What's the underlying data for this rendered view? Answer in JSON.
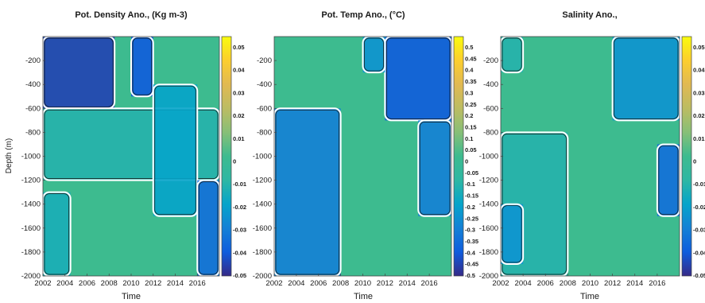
{
  "chart_data": [
    {
      "type": "heatmap",
      "title": "Pot. Density Ano., (Kg m-3)",
      "xlabel": "Time",
      "ylabel": "Depth (m)",
      "x_ticks": [
        "2002",
        "2004",
        "2006",
        "2008",
        "2010",
        "2012",
        "2014",
        "2016"
      ],
      "y_ticks": [
        "-200",
        "-400",
        "-600",
        "-800",
        "-1000",
        "-1200",
        "-1400",
        "-1600",
        "-1800",
        "-2000"
      ],
      "xlim": [
        2002,
        2018
      ],
      "ylim": [
        -2000,
        0
      ],
      "colorbar_ticks": [
        "0.05",
        "0.04",
        "0.03",
        "0.02",
        "0.01",
        "0",
        "-0.01",
        "-0.02",
        "-0.03",
        "-0.04",
        "-0.05"
      ],
      "clim": [
        -0.05,
        0.05
      ],
      "colormap": "parula",
      "background_value": 0,
      "anomaly_regions": [
        {
          "x0": 2002,
          "x1": 2008.5,
          "d0": 0,
          "d1": -600,
          "value": -0.045
        },
        {
          "x0": 2002,
          "x1": 2018,
          "d0": -600,
          "d1": -1200,
          "value": -0.012
        },
        {
          "x0": 2002,
          "x1": 2004.5,
          "d0": -1300,
          "d1": -2000,
          "value": -0.015
        },
        {
          "x0": 2010,
          "x1": 2012,
          "d0": 0,
          "d1": -500,
          "value": -0.04
        },
        {
          "x0": 2012,
          "x1": 2016,
          "d0": -400,
          "d1": -1500,
          "value": -0.02
        },
        {
          "x0": 2016,
          "x1": 2018,
          "d0": -1200,
          "d1": -2000,
          "value": -0.035
        }
      ]
    },
    {
      "type": "heatmap",
      "title": "Pot. Temp Ano., (°C)",
      "xlabel": "Time",
      "ylabel": "",
      "x_ticks": [
        "2002",
        "2004",
        "2006",
        "2008",
        "2010",
        "2012",
        "2014",
        "2016"
      ],
      "y_ticks": [
        "-200",
        "-400",
        "-600",
        "-800",
        "-1000",
        "-1200",
        "-1400",
        "-1600",
        "-1800",
        "-2000"
      ],
      "xlim": [
        2002,
        2018
      ],
      "ylim": [
        -2000,
        0
      ],
      "colorbar_ticks": [
        "0.5",
        "0.45",
        "0.4",
        "0.35",
        "0.3",
        "0.25",
        "0.2",
        "0.15",
        "0.1",
        "0.05",
        "0",
        "-0.05",
        "-0.1",
        "-0.15",
        "-0.2",
        "-0.25",
        "-0.3",
        "-0.35",
        "-0.4",
        "-0.45",
        "-0.5"
      ],
      "clim": [
        -0.5,
        0.5
      ],
      "colormap": "parula",
      "background_value": 0,
      "anomaly_regions": [
        {
          "x0": 2002,
          "x1": 2008,
          "d0": -600,
          "d1": -2000,
          "value": -0.3
        },
        {
          "x0": 2012,
          "x1": 2018,
          "d0": 0,
          "d1": -700,
          "value": -0.4
        },
        {
          "x0": 2015,
          "x1": 2018,
          "d0": -700,
          "d1": -1500,
          "value": -0.3
        },
        {
          "x0": 2010,
          "x1": 2012,
          "d0": 0,
          "d1": -300,
          "value": -0.25
        }
      ]
    },
    {
      "type": "heatmap",
      "title": "Salinity Ano.,",
      "xlabel": "Time",
      "ylabel": "",
      "x_ticks": [
        "2002",
        "2004",
        "2006",
        "2008",
        "2010",
        "2012",
        "2014",
        "2016"
      ],
      "y_ticks": [
        "-200",
        "-400",
        "-600",
        "-800",
        "-1000",
        "-1200",
        "-1400",
        "-1600",
        "-1800",
        "-2000"
      ],
      "xlim": [
        2002,
        2018
      ],
      "ylim": [
        -2000,
        0
      ],
      "colorbar_ticks": [
        "0.05",
        "0.04",
        "0.03",
        "0.02",
        "0.01",
        "0",
        "-0.01",
        "-0.02",
        "-0.03",
        "-0.04",
        "-0.05"
      ],
      "clim": [
        -0.05,
        0.05
      ],
      "colormap": "parula",
      "background_value": 0,
      "anomaly_regions": [
        {
          "x0": 2002,
          "x1": 2008,
          "d0": -800,
          "d1": -2000,
          "value": -0.012
        },
        {
          "x0": 2002,
          "x1": 2004,
          "d0": -1400,
          "d1": -1900,
          "value": -0.025
        },
        {
          "x0": 2012,
          "x1": 2018,
          "d0": 0,
          "d1": -700,
          "value": -0.025
        },
        {
          "x0": 2016,
          "x1": 2018,
          "d0": -900,
          "d1": -1500,
          "value": -0.035
        },
        {
          "x0": 2002,
          "x1": 2004,
          "d0": 0,
          "d1": -300,
          "value": -0.012
        }
      ]
    }
  ]
}
